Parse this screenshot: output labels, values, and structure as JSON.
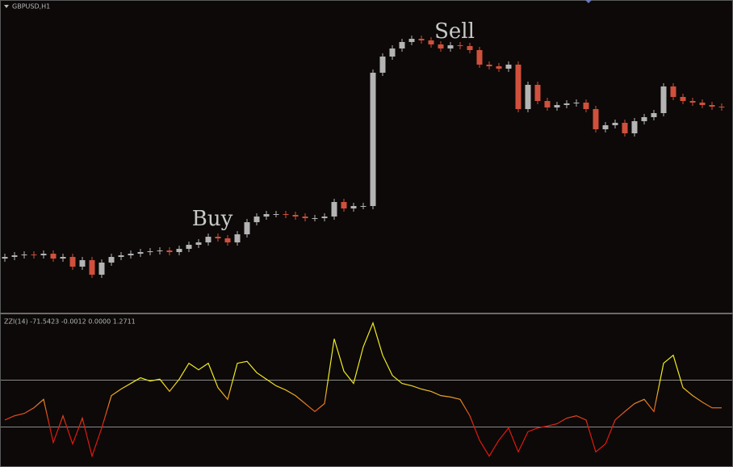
{
  "chart_data": [
    {
      "type": "candlestick",
      "title": "GBPUSD,H1",
      "annotations": [
        "Buy",
        "Sell"
      ],
      "up_color": "#b4b4b4",
      "down_color": "#d0503c",
      "ylim": [
        1.25,
        1.2885
      ],
      "open": [
        1.2565,
        1.2567,
        1.2569,
        1.257,
        1.2569,
        1.2571,
        1.2565,
        1.2567,
        1.2555,
        1.2563,
        1.2545,
        1.256,
        1.2567,
        1.2569,
        1.2571,
        1.2573,
        1.2574,
        1.2575,
        1.2573,
        1.2577,
        1.2582,
        1.2585,
        1.2592,
        1.259,
        1.2585,
        1.2595,
        1.261,
        1.2617,
        1.262,
        1.262,
        1.2619,
        1.2617,
        1.2615,
        1.2615,
        1.2617,
        1.2635,
        1.2627,
        1.263,
        1.263,
        1.2795,
        1.2815,
        1.2825,
        1.2833,
        1.2837,
        1.2835,
        1.283,
        1.2825,
        1.2829,
        1.2828,
        1.2823,
        1.2805,
        1.2803,
        1.28,
        1.2805,
        1.275,
        1.278,
        1.276,
        1.2752,
        1.2755,
        1.2757,
        1.2758,
        1.275,
        1.2725,
        1.273,
        1.2733,
        1.272,
        1.2735,
        1.274,
        1.2745,
        1.2778,
        1.2765,
        1.276,
        1.2758,
        1.2755,
        1.2753
      ],
      "high": [
        1.2571,
        1.2573,
        1.2574,
        1.2574,
        1.2575,
        1.2575,
        1.2571,
        1.2571,
        1.2567,
        1.2567,
        1.2564,
        1.2571,
        1.2573,
        1.2575,
        1.2577,
        1.2578,
        1.2579,
        1.2579,
        1.2581,
        1.2586,
        1.2589,
        1.2596,
        1.2596,
        1.2594,
        1.2599,
        1.2614,
        1.2621,
        1.2624,
        1.2624,
        1.2624,
        1.2623,
        1.2621,
        1.2619,
        1.2621,
        1.2639,
        1.2639,
        1.2634,
        1.2634,
        1.2799,
        1.2819,
        1.2829,
        1.2837,
        1.2841,
        1.2841,
        1.2839,
        1.2834,
        1.2833,
        1.2833,
        1.2832,
        1.2827,
        1.2809,
        1.2807,
        1.2809,
        1.2809,
        1.2784,
        1.2784,
        1.2764,
        1.2759,
        1.2761,
        1.2762,
        1.2762,
        1.2754,
        1.2734,
        1.2737,
        1.2737,
        1.2739,
        1.2744,
        1.2749,
        1.2782,
        1.2782,
        1.2769,
        1.2764,
        1.2762,
        1.2759,
        1.2757
      ],
      "low": [
        1.2561,
        1.2563,
        1.2565,
        1.2565,
        1.2565,
        1.2561,
        1.2561,
        1.2551,
        1.2551,
        1.2541,
        1.2541,
        1.2556,
        1.2563,
        1.2565,
        1.2567,
        1.2569,
        1.257,
        1.2569,
        1.2569,
        1.2573,
        1.2578,
        1.2581,
        1.2586,
        1.2581,
        1.2581,
        1.2591,
        1.2606,
        1.2613,
        1.2616,
        1.2615,
        1.2613,
        1.2611,
        1.2611,
        1.2611,
        1.2613,
        1.2623,
        1.2623,
        1.2626,
        1.2626,
        1.2791,
        1.2811,
        1.2821,
        1.2829,
        1.2831,
        1.2826,
        1.2821,
        1.2821,
        1.2824,
        1.2819,
        1.2801,
        1.2799,
        1.2796,
        1.2796,
        1.2746,
        1.2746,
        1.2756,
        1.2748,
        1.2748,
        1.2751,
        1.2753,
        1.2746,
        1.2721,
        1.2721,
        1.2726,
        1.2716,
        1.2716,
        1.2731,
        1.2736,
        1.2741,
        1.2761,
        1.2756,
        1.2754,
        1.2751,
        1.2749,
        1.2748
      ],
      "close": [
        1.2567,
        1.2569,
        1.257,
        1.2569,
        1.2571,
        1.2565,
        1.2567,
        1.2555,
        1.2563,
        1.2545,
        1.256,
        1.2567,
        1.2569,
        1.2571,
        1.2573,
        1.2574,
        1.2575,
        1.2573,
        1.2577,
        1.2582,
        1.2585,
        1.2592,
        1.259,
        1.2585,
        1.2595,
        1.261,
        1.2617,
        1.262,
        1.262,
        1.2619,
        1.2617,
        1.2615,
        1.2615,
        1.2617,
        1.2635,
        1.2627,
        1.263,
        1.263,
        1.2795,
        1.2815,
        1.2825,
        1.2833,
        1.2837,
        1.2835,
        1.283,
        1.2825,
        1.2829,
        1.2828,
        1.2823,
        1.2805,
        1.2803,
        1.28,
        1.2805,
        1.275,
        1.278,
        1.276,
        1.2752,
        1.2755,
        1.2757,
        1.2758,
        1.275,
        1.2725,
        1.273,
        1.2733,
        1.272,
        1.2735,
        1.274,
        1.2745,
        1.2778,
        1.2765,
        1.276,
        1.2758,
        1.2755,
        1.2753,
        1.2752
      ]
    },
    {
      "type": "line",
      "title": "ZZI(14) -71.5423 -0.0012 0.0000 1.2711",
      "ylim": [
        -130,
        180
      ],
      "levels": [
        50,
        -50
      ],
      "level_color": "#8a8a8a",
      "colors": {
        "low": "#e01810",
        "mid": "#e07a28",
        "high": "#f0ec20"
      },
      "values": [
        -35,
        -26,
        -21,
        -9,
        9,
        -83,
        -26,
        -86,
        -31,
        -112,
        -52,
        17,
        31,
        43,
        55,
        48,
        52,
        26,
        52,
        86,
        72,
        86,
        34,
        9,
        86,
        90,
        66,
        52,
        38,
        29,
        17,
        0,
        -17,
        0,
        138,
        69,
        43,
        121,
        172,
        103,
        60,
        43,
        38,
        31,
        26,
        17,
        14,
        9,
        -26,
        -78,
        -112,
        -78,
        -52,
        -103,
        -60,
        -52,
        -48,
        -43,
        -31,
        -26,
        -35,
        -103,
        -86,
        -35,
        -17,
        0,
        9,
        -17,
        86,
        103,
        34,
        17,
        3,
        -9,
        -9
      ]
    }
  ]
}
